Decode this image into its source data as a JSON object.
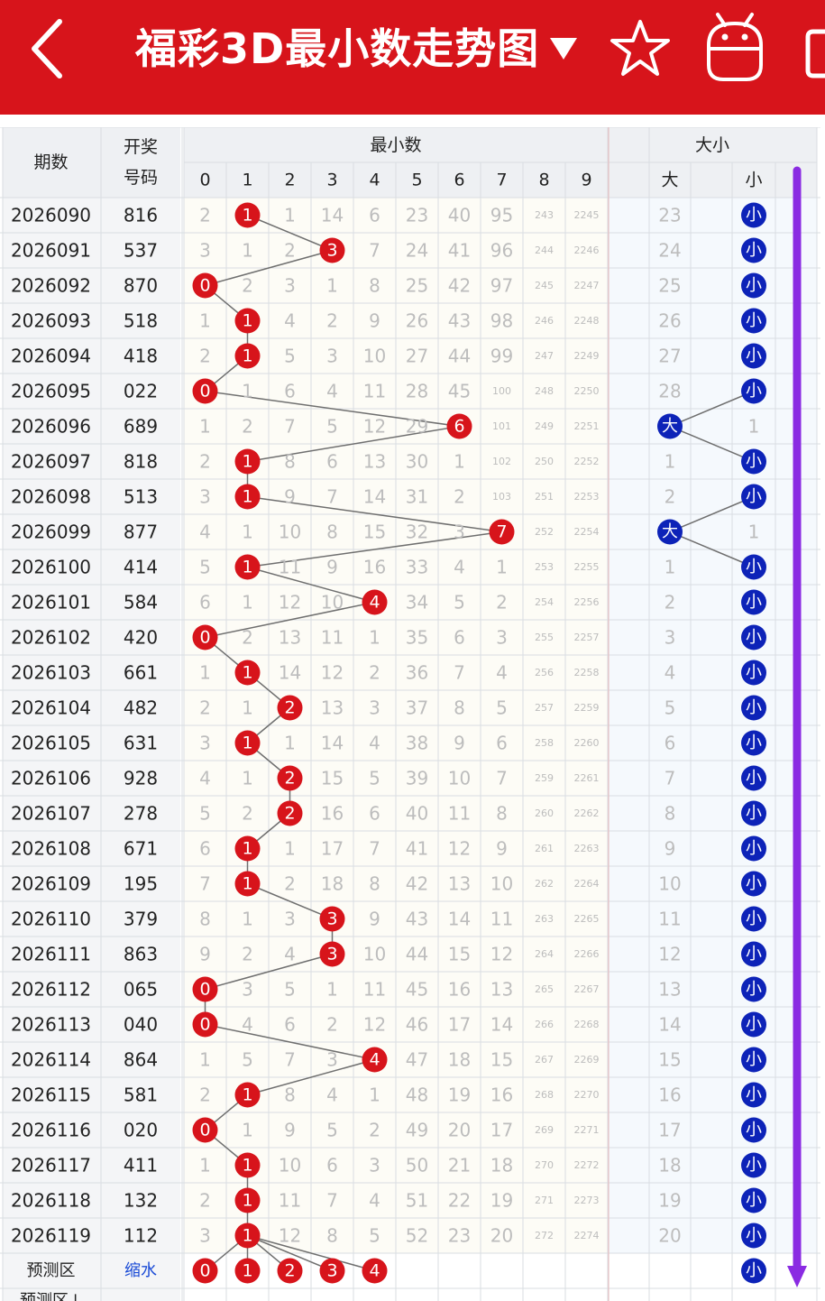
{
  "header": {
    "title": "福彩3D最小数走势图",
    "back_icon": "chevron-left-icon",
    "dropdown_icon": "caret-down-icon",
    "favorite_icon": "star-icon",
    "robot_icon": "android-robot-icon",
    "bg_color": "#d7141b"
  },
  "table": {
    "col_period": "期数",
    "col_number_line1": "开奖",
    "col_number_line2": "号码",
    "group_min": "最小数",
    "group_size": "大小",
    "digits": [
      "0",
      "1",
      "2",
      "3",
      "4",
      "5",
      "6",
      "7",
      "8",
      "9"
    ],
    "size_big": "大",
    "size_small": "小",
    "rows": [
      {
        "period": "2026090",
        "number": "816",
        "min": 1,
        "misses": [
          "2",
          "",
          "1",
          "14",
          "6",
          "23",
          "40",
          "95",
          "243",
          "2245"
        ],
        "size": "小",
        "big_miss": "23"
      },
      {
        "period": "2026091",
        "number": "537",
        "min": 3,
        "misses": [
          "3",
          "1",
          "2",
          "",
          "7",
          "24",
          "41",
          "96",
          "244",
          "2246"
        ],
        "size": "小",
        "big_miss": "24"
      },
      {
        "period": "2026092",
        "number": "870",
        "min": 0,
        "misses": [
          "",
          "2",
          "3",
          "1",
          "8",
          "25",
          "42",
          "97",
          "245",
          "2247"
        ],
        "size": "小",
        "big_miss": "25"
      },
      {
        "period": "2026093",
        "number": "518",
        "min": 1,
        "misses": [
          "1",
          "",
          "4",
          "2",
          "9",
          "26",
          "43",
          "98",
          "246",
          "2248"
        ],
        "size": "小",
        "big_miss": "26"
      },
      {
        "period": "2026094",
        "number": "418",
        "min": 1,
        "misses": [
          "2",
          "",
          "5",
          "3",
          "10",
          "27",
          "44",
          "99",
          "247",
          "2249"
        ],
        "size": "小",
        "big_miss": "27"
      },
      {
        "period": "2026095",
        "number": "022",
        "min": 0,
        "misses": [
          "",
          "1",
          "6",
          "4",
          "11",
          "28",
          "45",
          "100",
          "248",
          "2250"
        ],
        "size": "小",
        "big_miss": "28"
      },
      {
        "period": "2026096",
        "number": "689",
        "min": 6,
        "misses": [
          "1",
          "2",
          "7",
          "5",
          "12",
          "29",
          "",
          "101",
          "249",
          "2251"
        ],
        "size": "大",
        "small_miss": "1"
      },
      {
        "period": "2026097",
        "number": "818",
        "min": 1,
        "misses": [
          "2",
          "",
          "8",
          "6",
          "13",
          "30",
          "1",
          "102",
          "250",
          "2252"
        ],
        "size": "小",
        "big_miss": "1"
      },
      {
        "period": "2026098",
        "number": "513",
        "min": 1,
        "misses": [
          "3",
          "",
          "9",
          "7",
          "14",
          "31",
          "2",
          "103",
          "251",
          "2253"
        ],
        "size": "小",
        "big_miss": "2"
      },
      {
        "period": "2026099",
        "number": "877",
        "min": 7,
        "misses": [
          "4",
          "1",
          "10",
          "8",
          "15",
          "32",
          "3",
          "",
          "252",
          "2254"
        ],
        "size": "大",
        "small_miss": "1"
      },
      {
        "period": "2026100",
        "number": "414",
        "min": 1,
        "misses": [
          "5",
          "",
          "11",
          "9",
          "16",
          "33",
          "4",
          "1",
          "253",
          "2255"
        ],
        "size": "小",
        "big_miss": "1"
      },
      {
        "period": "2026101",
        "number": "584",
        "min": 4,
        "misses": [
          "6",
          "1",
          "12",
          "10",
          "",
          "34",
          "5",
          "2",
          "254",
          "2256"
        ],
        "size": "小",
        "big_miss": "2"
      },
      {
        "period": "2026102",
        "number": "420",
        "min": 0,
        "misses": [
          "",
          "2",
          "13",
          "11",
          "1",
          "35",
          "6",
          "3",
          "255",
          "2257"
        ],
        "size": "小",
        "big_miss": "3"
      },
      {
        "period": "2026103",
        "number": "661",
        "min": 1,
        "misses": [
          "1",
          "",
          "14",
          "12",
          "2",
          "36",
          "7",
          "4",
          "256",
          "2258"
        ],
        "size": "小",
        "big_miss": "4"
      },
      {
        "period": "2026104",
        "number": "482",
        "min": 2,
        "misses": [
          "2",
          "1",
          "",
          "13",
          "3",
          "37",
          "8",
          "5",
          "257",
          "2259"
        ],
        "size": "小",
        "big_miss": "5"
      },
      {
        "period": "2026105",
        "number": "631",
        "min": 1,
        "misses": [
          "3",
          "",
          "1",
          "14",
          "4",
          "38",
          "9",
          "6",
          "258",
          "2260"
        ],
        "size": "小",
        "big_miss": "6"
      },
      {
        "period": "2026106",
        "number": "928",
        "min": 2,
        "misses": [
          "4",
          "1",
          "",
          "15",
          "5",
          "39",
          "10",
          "7",
          "259",
          "2261"
        ],
        "size": "小",
        "big_miss": "7"
      },
      {
        "period": "2026107",
        "number": "278",
        "min": 2,
        "misses": [
          "5",
          "2",
          "",
          "16",
          "6",
          "40",
          "11",
          "8",
          "260",
          "2262"
        ],
        "size": "小",
        "big_miss": "8"
      },
      {
        "period": "2026108",
        "number": "671",
        "min": 1,
        "misses": [
          "6",
          "",
          "1",
          "17",
          "7",
          "41",
          "12",
          "9",
          "261",
          "2263"
        ],
        "size": "小",
        "big_miss": "9"
      },
      {
        "period": "2026109",
        "number": "195",
        "min": 1,
        "misses": [
          "7",
          "",
          "2",
          "18",
          "8",
          "42",
          "13",
          "10",
          "262",
          "2264"
        ],
        "size": "小",
        "big_miss": "10"
      },
      {
        "period": "2026110",
        "number": "379",
        "min": 3,
        "misses": [
          "8",
          "1",
          "3",
          "",
          "9",
          "43",
          "14",
          "11",
          "263",
          "2265"
        ],
        "size": "小",
        "big_miss": "11"
      },
      {
        "period": "2026111",
        "number": "863",
        "min": 3,
        "misses": [
          "9",
          "2",
          "4",
          "",
          "10",
          "44",
          "15",
          "12",
          "264",
          "2266"
        ],
        "size": "小",
        "big_miss": "12"
      },
      {
        "period": "2026112",
        "number": "065",
        "min": 0,
        "misses": [
          "",
          "3",
          "5",
          "1",
          "11",
          "45",
          "16",
          "13",
          "265",
          "2267"
        ],
        "size": "小",
        "big_miss": "13"
      },
      {
        "period": "2026113",
        "number": "040",
        "min": 0,
        "misses": [
          "",
          "4",
          "6",
          "2",
          "12",
          "46",
          "17",
          "14",
          "266",
          "2268"
        ],
        "size": "小",
        "big_miss": "14"
      },
      {
        "period": "2026114",
        "number": "864",
        "min": 4,
        "misses": [
          "1",
          "5",
          "7",
          "3",
          "",
          "47",
          "18",
          "15",
          "267",
          "2269"
        ],
        "size": "小",
        "big_miss": "15"
      },
      {
        "period": "2026115",
        "number": "581",
        "min": 1,
        "misses": [
          "2",
          "",
          "8",
          "4",
          "1",
          "48",
          "19",
          "16",
          "268",
          "2270"
        ],
        "size": "小",
        "big_miss": "16"
      },
      {
        "period": "2026116",
        "number": "020",
        "min": 0,
        "misses": [
          "",
          "1",
          "9",
          "5",
          "2",
          "49",
          "20",
          "17",
          "269",
          "2271"
        ],
        "size": "小",
        "big_miss": "17"
      },
      {
        "period": "2026117",
        "number": "411",
        "min": 1,
        "misses": [
          "1",
          "",
          "10",
          "6",
          "3",
          "50",
          "21",
          "18",
          "270",
          "2272"
        ],
        "size": "小",
        "big_miss": "18"
      },
      {
        "period": "2026118",
        "number": "132",
        "min": 1,
        "misses": [
          "2",
          "",
          "11",
          "7",
          "4",
          "51",
          "22",
          "19",
          "271",
          "2273"
        ],
        "size": "小",
        "big_miss": "19"
      },
      {
        "period": "2026119",
        "number": "112",
        "min": 1,
        "misses": [
          "3",
          "",
          "12",
          "8",
          "5",
          "52",
          "23",
          "20",
          "272",
          "2274"
        ],
        "size": "小",
        "big_miss": "20"
      }
    ],
    "predict": {
      "label": "预测区",
      "link": "缩水",
      "balls": [
        "0",
        "1",
        "2",
        "3",
        "4"
      ],
      "size": "小"
    },
    "predict2_label": "预测区↓",
    "colors": {
      "red_ball": "#d7141b",
      "blue_ball": "#0d23b8",
      "line": "#6f6f6f",
      "arrow": "#8a2be2"
    },
    "arrow_icon": "scroll-down-arrow-icon"
  }
}
